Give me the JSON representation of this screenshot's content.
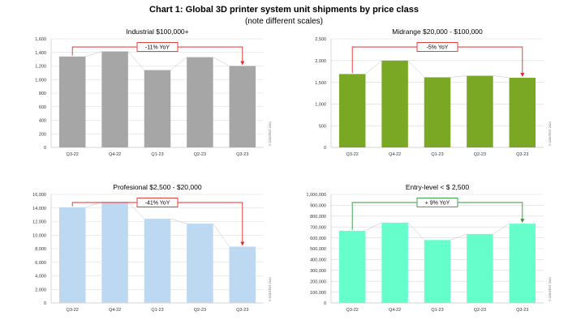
{
  "header": {
    "title": "Chart 1: Global 3D printer system unit shipments by price class",
    "subtitle": "(note different scales)"
  },
  "chart_data": [
    {
      "type": "bar",
      "title": "Industrial $100,000+",
      "categories": [
        "Q3-22",
        "Q4-22",
        "Q1-23",
        "Q2-23",
        "Q3-23"
      ],
      "values": [
        1340,
        1415,
        1140,
        1330,
        1200
      ],
      "ylim": [
        0,
        1600
      ],
      "yticks": [
        0,
        200,
        400,
        600,
        800,
        1000,
        1200,
        1400,
        1600
      ],
      "ytick_labels": [
        "0",
        "200",
        "400",
        "600",
        "800",
        "1,000",
        "1,200",
        "1,400",
        "1,600"
      ],
      "annotation": "-11% YoY",
      "annotation_color": "#e0302c",
      "bar_color": "#a6a6a6",
      "watermark": "© CONTEXT 2024",
      "grid": true
    },
    {
      "type": "bar",
      "title": "Midrange $20,000 - $100,000",
      "categories": [
        "Q3-22",
        "Q4-22",
        "Q1-23",
        "Q2-23",
        "Q3-23"
      ],
      "values": [
        1690,
        2000,
        1615,
        1650,
        1605
      ],
      "ylim": [
        0,
        2500
      ],
      "yticks": [
        0,
        500,
        1000,
        1500,
        2000,
        2500
      ],
      "ytick_labels": [
        "0",
        "500",
        "1,000",
        "1,500",
        "2,000",
        "2,500"
      ],
      "annotation": "-5% YoY",
      "annotation_color": "#e0302c",
      "bar_color": "#7aa824",
      "watermark": "© CONTEXT 2024",
      "grid": true
    },
    {
      "type": "bar",
      "title": "Profesional $2,500 - $20,000",
      "categories": [
        "Q3-22",
        "Q4-22",
        "Q1-23",
        "Q2-23",
        "Q3-23"
      ],
      "values": [
        14100,
        14900,
        12400,
        11700,
        8300
      ],
      "ylim": [
        0,
        16000
      ],
      "yticks": [
        0,
        2000,
        4000,
        6000,
        8000,
        10000,
        12000,
        14000,
        16000
      ],
      "ytick_labels": [
        "0",
        "2,000",
        "4,000",
        "6,000",
        "8,000",
        "10,000",
        "12,000",
        "14,000",
        "16,000"
      ],
      "annotation": "-41% YoY",
      "annotation_color": "#e0302c",
      "bar_color": "#bdd9f2",
      "watermark": "© CONTEXT 2024",
      "grid": true
    },
    {
      "type": "bar",
      "title": "Entry-level < $ 2,500",
      "categories": [
        "Q3-22",
        "Q4-22",
        "Q1-23",
        "Q2-23",
        "Q3-23"
      ],
      "values": [
        665000,
        740000,
        580000,
        635000,
        730000
      ],
      "ylim": [
        0,
        1000000
      ],
      "yticks": [
        0,
        100000,
        200000,
        300000,
        400000,
        500000,
        600000,
        700000,
        800000,
        900000,
        1000000
      ],
      "ytick_labels": [
        "0",
        "100,000",
        "200,000",
        "300,000",
        "400,000",
        "500,000",
        "600,000",
        "700,000",
        "800,000",
        "900,000",
        "1,000,000"
      ],
      "annotation": "+ 9% YoY",
      "annotation_color": "#2e9a3e",
      "bar_color": "#66ffcc",
      "watermark": "© CONTEXT 2024",
      "grid": true
    }
  ]
}
